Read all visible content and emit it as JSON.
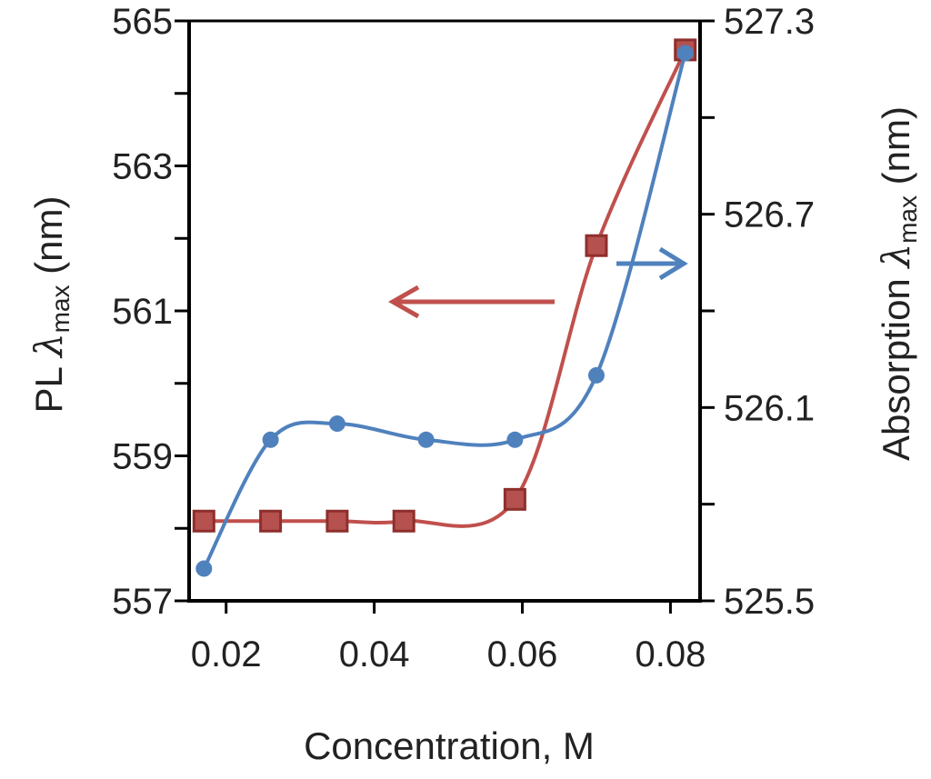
{
  "chart_data": {
    "type": "line",
    "xlabel": "Concentration, M",
    "ylabel_left": {
      "prefix": "PL ",
      "symbol": "λ",
      "subscript": "max",
      "suffix": " (nm)"
    },
    "ylabel_right": {
      "prefix": "Absorption ",
      "symbol": "λ",
      "subscript": "max",
      "suffix": " (nm)"
    },
    "xlim": [
      0.015,
      0.084
    ],
    "ylim_left": [
      557,
      565
    ],
    "ylim_right": [
      525.5,
      527.3
    ],
    "x_ticks": [
      0.02,
      0.04,
      0.06,
      0.08
    ],
    "x_tick_labels": [
      "0.02",
      "0.04",
      "0.06",
      "0.08"
    ],
    "y_left_ticks": [
      557,
      559,
      561,
      563,
      565
    ],
    "y_left_tick_labels": [
      "557",
      "559",
      "561",
      "563",
      "565"
    ],
    "y_left_minor_ticks": [
      558,
      560,
      562,
      564
    ],
    "y_right_ticks": [
      525.5,
      526.1,
      526.7,
      527.3
    ],
    "y_right_tick_labels": [
      "525.5",
      "526.1",
      "526.7",
      "527.3"
    ],
    "y_right_minor_ticks": [
      525.8,
      526.4,
      527.0
    ],
    "series": [
      {
        "axis": "left",
        "marker": "square",
        "color": "#c0504d",
        "x": [
          0.017,
          0.026,
          0.035,
          0.044,
          0.059,
          0.07,
          0.082
        ],
        "y": [
          558.1,
          558.1,
          558.1,
          558.1,
          558.4,
          561.9,
          564.6
        ]
      },
      {
        "axis": "right",
        "marker": "circle",
        "color": "#4f81bd",
        "x": [
          0.017,
          0.026,
          0.035,
          0.047,
          0.059,
          0.07,
          0.082
        ],
        "y": [
          525.6,
          526.0,
          526.05,
          526.0,
          526.0,
          526.2,
          527.2
        ]
      }
    ],
    "annotations": [
      {
        "type": "arrow",
        "direction": "left",
        "points_to": "left axis",
        "color": "#c0504d"
      },
      {
        "type": "arrow",
        "direction": "right",
        "points_to": "right axis",
        "color": "#4f81bd"
      }
    ],
    "grid": false
  }
}
